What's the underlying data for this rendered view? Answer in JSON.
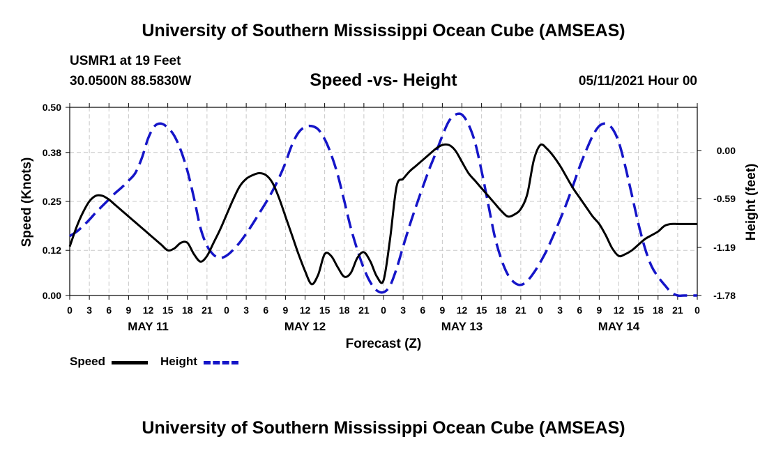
{
  "header": {
    "title": "University of Southern Mississippi Ocean Cube (AMSEAS)",
    "station": "USMR1 at 19 Feet",
    "coords": "30.0500N  88.5830W",
    "chart_title": "Speed -vs- Height",
    "run_time": "05/11/2021 Hour 00"
  },
  "footer": {
    "title": "University of Southern Mississippi Ocean Cube (AMSEAS)"
  },
  "legend": {
    "speed_label": "Speed",
    "height_label": "Height"
  },
  "colors": {
    "speed": "#000000",
    "height": "#1515c8",
    "grid": "#c8c8c8"
  },
  "chart_data": {
    "type": "line",
    "title": "Speed -vs- Height",
    "xlabel": "Forecast (Z)",
    "ylabel": "Speed (Knots)",
    "y2label": "Height (feet)",
    "xlim": [
      0,
      96
    ],
    "ylim": [
      0,
      0.5
    ],
    "y2lim": [
      -1.78,
      0.53
    ],
    "yticks": [
      0.0,
      0.12,
      0.25,
      0.38,
      0.5
    ],
    "ytick_labels": [
      "0.00",
      "0.12",
      "0.25",
      "0.38",
      "0.50"
    ],
    "y2ticks": [
      0.0,
      -0.59,
      -1.19,
      -1.78
    ],
    "y2tick_labels": [
      "0.00",
      "-0.59",
      "-1.19",
      "-1.78"
    ],
    "xticks": [
      0,
      3,
      6,
      9,
      12,
      15,
      18,
      21,
      24,
      27,
      30,
      33,
      36,
      39,
      42,
      45,
      48,
      51,
      54,
      57,
      60,
      63,
      66,
      69,
      72,
      75,
      78,
      81,
      84,
      87,
      90,
      93,
      96
    ],
    "xtick_labels": [
      "0",
      "3",
      "6",
      "9",
      "12",
      "15",
      "18",
      "21",
      "0",
      "3",
      "6",
      "9",
      "12",
      "15",
      "18",
      "21",
      "0",
      "3",
      "6",
      "9",
      "12",
      "15",
      "18",
      "21",
      "0",
      "3",
      "6",
      "9",
      "12",
      "15",
      "18",
      "21",
      "0"
    ],
    "day_labels": [
      {
        "label": "MAY 11",
        "x": 12
      },
      {
        "label": "MAY 12",
        "x": 36
      },
      {
        "label": "MAY 13",
        "x": 60
      },
      {
        "label": "MAY 14",
        "x": 84
      }
    ],
    "grid": true,
    "legend_position": "bottom-left",
    "series": [
      {
        "name": "Speed",
        "axis": "left",
        "style": "solid",
        "x": [
          0,
          1,
          2,
          3,
          4,
          5,
          6,
          7,
          8,
          9,
          10,
          11,
          12,
          13,
          14,
          15,
          16,
          17,
          18,
          19,
          20,
          21,
          22,
          23,
          24,
          25,
          26,
          27,
          28,
          29,
          30,
          31,
          32,
          33,
          34,
          35,
          36,
          37,
          38,
          39,
          40,
          41,
          42,
          43,
          44,
          45,
          46,
          47,
          48,
          49,
          50,
          51,
          52,
          53,
          54,
          55,
          56,
          57,
          58,
          59,
          60,
          61,
          62,
          63,
          64,
          65,
          66,
          67,
          68,
          69,
          70,
          71,
          72,
          73,
          74,
          75,
          76,
          77,
          78,
          79,
          80,
          81,
          82,
          83,
          84,
          85,
          86,
          87,
          88,
          89,
          90,
          91,
          92,
          93,
          94,
          95,
          96
        ],
        "values": [
          0.13,
          0.18,
          0.22,
          0.25,
          0.265,
          0.265,
          0.255,
          0.24,
          0.225,
          0.21,
          0.195,
          0.18,
          0.165,
          0.15,
          0.135,
          0.12,
          0.125,
          0.14,
          0.14,
          0.11,
          0.09,
          0.105,
          0.14,
          0.175,
          0.215,
          0.255,
          0.29,
          0.31,
          0.32,
          0.325,
          0.32,
          0.3,
          0.26,
          0.21,
          0.16,
          0.11,
          0.065,
          0.03,
          0.055,
          0.11,
          0.105,
          0.075,
          0.05,
          0.06,
          0.1,
          0.115,
          0.09,
          0.05,
          0.04,
          0.15,
          0.29,
          0.31,
          0.33,
          0.345,
          0.36,
          0.375,
          0.39,
          0.4,
          0.4,
          0.385,
          0.355,
          0.325,
          0.305,
          0.285,
          0.265,
          0.245,
          0.225,
          0.21,
          0.215,
          0.23,
          0.27,
          0.36,
          0.4,
          0.39,
          0.37,
          0.345,
          0.315,
          0.285,
          0.26,
          0.235,
          0.21,
          0.19,
          0.16,
          0.125,
          0.105,
          0.11,
          0.12,
          0.135,
          0.15,
          0.16,
          0.17,
          0.185,
          0.19,
          0.19,
          0.19,
          0.19,
          0.19
        ]
      },
      {
        "name": "Height",
        "axis": "right",
        "style": "dashed",
        "x": [
          0,
          1,
          2,
          3,
          4,
          5,
          6,
          7,
          8,
          9,
          10,
          11,
          12,
          13,
          14,
          15,
          16,
          17,
          18,
          19,
          20,
          21,
          22,
          23,
          24,
          25,
          26,
          27,
          28,
          29,
          30,
          31,
          32,
          33,
          34,
          35,
          36,
          37,
          38,
          39,
          40,
          41,
          42,
          43,
          44,
          45,
          46,
          47,
          48,
          49,
          50,
          51,
          52,
          53,
          54,
          55,
          56,
          57,
          58,
          59,
          60,
          61,
          62,
          63,
          64,
          65,
          66,
          67,
          68,
          69,
          70,
          71,
          72,
          73,
          74,
          75,
          76,
          77,
          78,
          79,
          80,
          81,
          82,
          83,
          84,
          85,
          86,
          87,
          88,
          89,
          90,
          91,
          92,
          93,
          94,
          95,
          96
        ],
        "values": [
          -1.05,
          -1.0,
          -0.93,
          -0.85,
          -0.76,
          -0.68,
          -0.6,
          -0.52,
          -0.45,
          -0.37,
          -0.28,
          -0.1,
          0.15,
          0.3,
          0.33,
          0.28,
          0.18,
          0.0,
          -0.25,
          -0.58,
          -0.95,
          -1.17,
          -1.28,
          -1.32,
          -1.29,
          -1.22,
          -1.13,
          -1.02,
          -0.9,
          -0.77,
          -0.64,
          -0.5,
          -0.34,
          -0.15,
          0.07,
          0.22,
          0.29,
          0.3,
          0.26,
          0.14,
          -0.05,
          -0.3,
          -0.62,
          -0.95,
          -1.22,
          -1.45,
          -1.62,
          -1.72,
          -1.74,
          -1.66,
          -1.45,
          -1.18,
          -0.92,
          -0.68,
          -0.45,
          -0.23,
          -0.03,
          0.18,
          0.36,
          0.44,
          0.44,
          0.32,
          0.1,
          -0.25,
          -0.65,
          -1.05,
          -1.33,
          -1.52,
          -1.62,
          -1.65,
          -1.6,
          -1.5,
          -1.37,
          -1.22,
          -1.04,
          -0.85,
          -0.65,
          -0.43,
          -0.2,
          0.0,
          0.18,
          0.3,
          0.33,
          0.27,
          0.1,
          -0.2,
          -0.55,
          -0.9,
          -1.2,
          -1.42,
          -1.55,
          -1.65,
          -1.74,
          -1.78,
          -1.78,
          -1.78,
          -1.78
        ]
      }
    ]
  }
}
